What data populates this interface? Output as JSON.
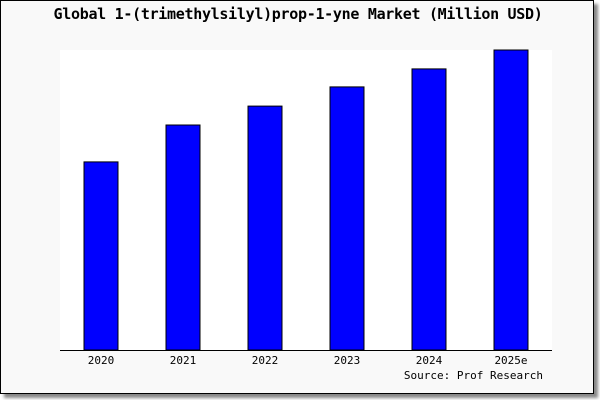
{
  "chart_data": {
    "type": "bar",
    "title": "Global 1-(trimethylsilyl)prop-1-yne Market (Million USD)",
    "categories": [
      "2020",
      "2021",
      "2022",
      "2023",
      "2024",
      "2025e"
    ],
    "values": [
      62.7,
      75.0,
      81.3,
      87.7,
      93.7,
      100
    ],
    "xlabel": "",
    "ylabel": "",
    "ylim": [
      0,
      100
    ],
    "grid": false,
    "bar_color": "#0000ff",
    "source": "Source: Prof Research"
  }
}
